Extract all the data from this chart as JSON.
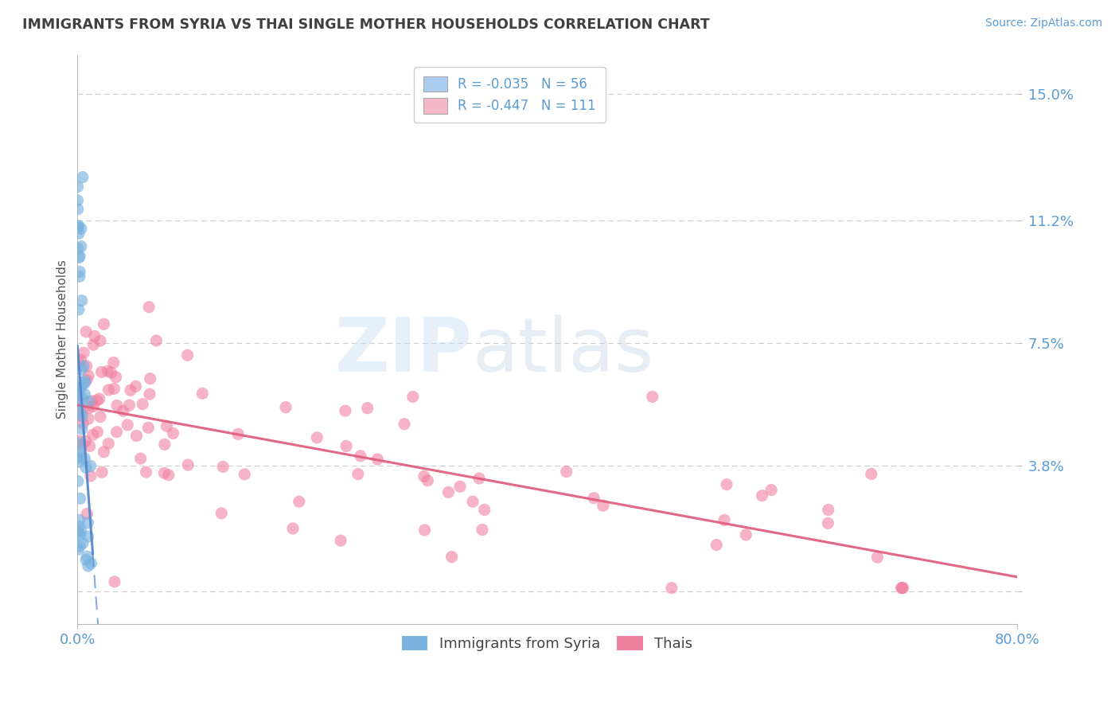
{
  "title": "IMMIGRANTS FROM SYRIA VS THAI SINGLE MOTHER HOUSEHOLDS CORRELATION CHART",
  "source": "Source: ZipAtlas.com",
  "ylabel": "Single Mother Households",
  "yticks": [
    0.0,
    0.038,
    0.075,
    0.112,
    0.15
  ],
  "ytick_labels": [
    "",
    "3.8%",
    "7.5%",
    "11.2%",
    "15.0%"
  ],
  "xlim": [
    0.0,
    0.8
  ],
  "ylim": [
    -0.01,
    0.162
  ],
  "legend_1_label": "R = -0.035   N = 56",
  "legend_2_label": "R = -0.447   N = 111",
  "legend_1_color": "#aaccee",
  "legend_2_color": "#f4b8c8",
  "series1_color": "#7ab3e0",
  "series2_color": "#f080a0",
  "trendline1_color": "#5588cc",
  "trendline2_color": "#e06080",
  "watermark_zip": "ZIP",
  "watermark_atlas": "atlas",
  "background_color": "#ffffff",
  "grid_color": "#cccccc",
  "title_color": "#404040",
  "axis_label_color": "#5b9bd5"
}
